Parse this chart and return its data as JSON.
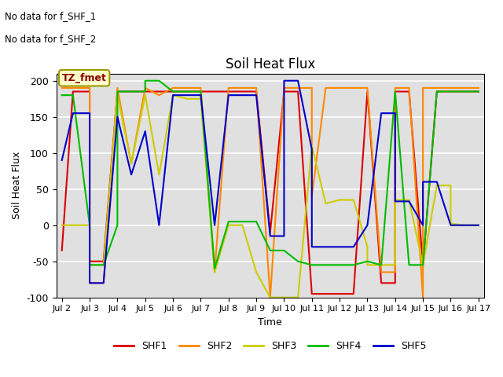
{
  "title": "Soil Heat Flux",
  "ylabel": "Soil Heat Flux",
  "xlabel": "Time",
  "ylim": [
    -100,
    210
  ],
  "annotation_line1": "No data for f_SHF_1",
  "annotation_line2": "No data for f_SHF_2",
  "box_label": "TZ_fmet",
  "plot_bg_color": "#e0e0e0",
  "fig_bg_color": "#ffffff",
  "series": {
    "SHF1": {
      "color": "#dd0000",
      "x": [
        2,
        2.4,
        3,
        3,
        3.5,
        4,
        4,
        4.6,
        5,
        5,
        5.5,
        6,
        6,
        6.5,
        7,
        7,
        7.4,
        8,
        8,
        8.5,
        9,
        9,
        9.5,
        10,
        10,
        10.5,
        11,
        11,
        11.5,
        12,
        12,
        12.5,
        13,
        13,
        13.5,
        14,
        14,
        14.5,
        15,
        15,
        15.5,
        16,
        16,
        16.5,
        17
      ],
      "y": [
        -35,
        185,
        185,
        -50,
        -50,
        185,
        185,
        185,
        185,
        185,
        185,
        185,
        185,
        185,
        185,
        185,
        185,
        185,
        185,
        185,
        185,
        185,
        -10,
        185,
        185,
        185,
        -95,
        -95,
        -95,
        -95,
        -95,
        -95,
        185,
        185,
        -80,
        -80,
        185,
        185,
        -55,
        -55,
        185,
        185,
        185,
        185,
        185
      ]
    },
    "SHF2": {
      "color": "#ff8800",
      "x": [
        2,
        2.4,
        3,
        3,
        3.5,
        4,
        4,
        4.5,
        5,
        5,
        5.5,
        6,
        6,
        6.5,
        7,
        7,
        7.5,
        8,
        8,
        8.5,
        9,
        9,
        9.5,
        10,
        10,
        10.5,
        11,
        11,
        11.5,
        12,
        12,
        12.5,
        13,
        13,
        13.5,
        14,
        14,
        14.5,
        15,
        15,
        15.5,
        16,
        16,
        16.5,
        17
      ],
      "y": [
        190,
        190,
        190,
        -80,
        -80,
        190,
        190,
        85,
        190,
        190,
        180,
        190,
        190,
        190,
        190,
        190,
        -65,
        190,
        190,
        190,
        190,
        190,
        -100,
        190,
        190,
        190,
        190,
        40,
        190,
        190,
        190,
        190,
        190,
        190,
        -65,
        -65,
        190,
        190,
        -100,
        190,
        190,
        190,
        190,
        190,
        190
      ]
    },
    "SHF3": {
      "color": "#cccc00",
      "x": [
        2,
        2.4,
        3,
        3,
        3.5,
        4,
        4,
        4.5,
        5,
        5,
        5.5,
        6,
        6,
        6.5,
        7,
        7,
        7.5,
        8,
        8,
        8.5,
        9,
        9,
        9.5,
        10,
        10,
        10.5,
        11,
        11,
        11.5,
        12,
        12,
        12.5,
        13,
        13,
        13.5,
        14,
        14,
        14.5,
        15,
        15,
        15.5,
        16,
        16,
        16.5,
        17
      ],
      "y": [
        0,
        0,
        0,
        -55,
        -55,
        180,
        180,
        85,
        180,
        180,
        70,
        180,
        180,
        175,
        175,
        175,
        -65,
        0,
        0,
        0,
        -65,
        -65,
        -100,
        -100,
        -100,
        -100,
        110,
        110,
        30,
        35,
        35,
        35,
        -30,
        -55,
        -55,
        -55,
        35,
        35,
        -55,
        -55,
        55,
        55,
        2,
        0,
        0
      ]
    },
    "SHF4": {
      "color": "#00bb00",
      "x": [
        2,
        2.4,
        3,
        3,
        3.5,
        4,
        4,
        4.5,
        5,
        5,
        5.5,
        6,
        6,
        6.5,
        7,
        7,
        7.5,
        8,
        8,
        8.5,
        9,
        9,
        9.5,
        10,
        10,
        10.5,
        11,
        11,
        11.5,
        12,
        12,
        12.5,
        13,
        13,
        13.5,
        14,
        14,
        14.5,
        15,
        15,
        15.5,
        16,
        16,
        16.5,
        17
      ],
      "y": [
        180,
        180,
        0,
        -55,
        -55,
        0,
        185,
        185,
        185,
        200,
        200,
        185,
        185,
        185,
        185,
        185,
        -60,
        5,
        5,
        5,
        5,
        5,
        -35,
        -35,
        -35,
        -50,
        -55,
        -55,
        -55,
        -55,
        -55,
        -55,
        -50,
        -50,
        -55,
        185,
        185,
        -55,
        -55,
        -55,
        185,
        185,
        185,
        185,
        185
      ]
    },
    "SHF5": {
      "color": "#0000cc",
      "x": [
        2,
        2.4,
        3,
        3,
        3.5,
        4,
        4,
        4.5,
        5,
        5,
        5.5,
        6,
        6,
        6.5,
        7,
        7,
        7.5,
        8,
        8,
        8.5,
        9,
        9,
        9.5,
        10,
        10,
        10.5,
        11,
        11,
        11.5,
        12,
        12,
        12.5,
        13,
        13,
        13.5,
        14,
        14,
        14.5,
        15,
        15,
        15.5,
        16,
        16,
        16.5,
        17
      ],
      "y": [
        90,
        155,
        155,
        -80,
        -80,
        150,
        150,
        70,
        130,
        130,
        0,
        180,
        180,
        180,
        180,
        180,
        0,
        180,
        180,
        180,
        180,
        180,
        -15,
        -15,
        200,
        200,
        105,
        -30,
        -30,
        -30,
        -30,
        -30,
        0,
        0,
        155,
        155,
        33,
        33,
        0,
        60,
        60,
        0,
        0,
        0,
        0
      ]
    }
  },
  "legend_labels": [
    "SHF1",
    "SHF2",
    "SHF3",
    "SHF4",
    "SHF5"
  ],
  "legend_colors": [
    "#dd0000",
    "#ff8800",
    "#cccc00",
    "#00bb00",
    "#0000cc"
  ],
  "xticks": [
    2,
    3,
    4,
    5,
    6,
    7,
    8,
    9,
    10,
    11,
    12,
    13,
    14,
    15,
    16,
    17
  ],
  "xtick_labels": [
    "Jul 2",
    "Jul 3",
    "Jul 4",
    "Jul 5",
    "Jul 6",
    "Jul 7",
    "Jul 8",
    "Jul 9",
    "Jul 10",
    "Jul 11",
    "Jul 12",
    "Jul 13",
    "Jul 14",
    "Jul 15",
    "Jul 16",
    "Jul 17"
  ],
  "yticks": [
    -100,
    -50,
    0,
    50,
    100,
    150,
    200
  ],
  "grid_color": "#ffffff",
  "grid_linewidth": 1.2
}
